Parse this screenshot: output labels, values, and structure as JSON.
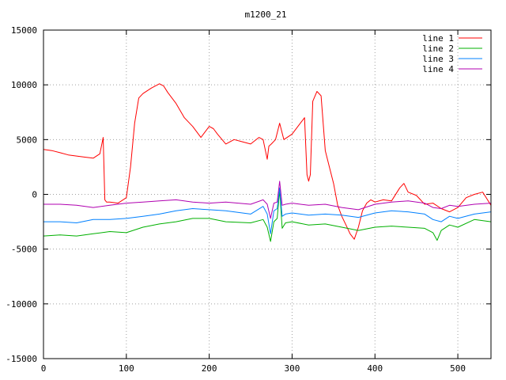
{
  "chart_data": {
    "type": "line",
    "title": "m1200_21",
    "xlabel": "",
    "ylabel": "",
    "xlim": [
      0,
      540
    ],
    "ylim": [
      -15000,
      15000
    ],
    "xticks": [
      0,
      100,
      200,
      300,
      400,
      500
    ],
    "yticks": [
      -15000,
      -10000,
      -5000,
      0,
      5000,
      10000,
      15000
    ],
    "grid": true,
    "legend_position": "top-right",
    "series": [
      {
        "name": "line 1",
        "color": "#ff0000",
        "x": [
          0,
          10,
          20,
          30,
          40,
          50,
          60,
          68,
          72,
          74,
          76,
          80,
          90,
          100,
          105,
          110,
          115,
          120,
          130,
          140,
          145,
          150,
          160,
          170,
          180,
          190,
          200,
          205,
          210,
          220,
          230,
          240,
          250,
          260,
          265,
          270,
          272,
          275,
          280,
          285,
          290,
          300,
          310,
          315,
          318,
          320,
          322,
          325,
          330,
          335,
          340,
          345,
          350,
          355,
          360,
          365,
          370,
          375,
          380,
          385,
          390,
          395,
          400,
          410,
          420,
          430,
          435,
          440,
          450,
          460,
          470,
          480,
          490,
          500,
          510,
          520,
          530,
          540
        ],
        "y": [
          4100,
          4000,
          3800,
          3600,
          3500,
          3400,
          3300,
          3700,
          5200,
          -500,
          -700,
          -700,
          -800,
          -300,
          2500,
          6500,
          8800,
          9200,
          9700,
          10100,
          9900,
          9300,
          8300,
          7000,
          6200,
          5200,
          6200,
          6000,
          5500,
          4600,
          5000,
          4800,
          4600,
          5200,
          5000,
          3200,
          4400,
          4600,
          5000,
          6500,
          5000,
          5500,
          6500,
          7000,
          1800,
          1200,
          1800,
          8500,
          9400,
          9000,
          4000,
          2500,
          1000,
          -1000,
          -2000,
          -2800,
          -3600,
          -4100,
          -3000,
          -1500,
          -800,
          -500,
          -700,
          -500,
          -600,
          600,
          1000,
          200,
          -100,
          -900,
          -800,
          -1300,
          -1600,
          -1200,
          -300,
          0,
          200,
          -1000
        ]
      },
      {
        "name": "line 2",
        "color": "#00b000",
        "x": [
          0,
          20,
          40,
          60,
          80,
          100,
          120,
          140,
          160,
          180,
          200,
          220,
          250,
          265,
          270,
          274,
          278,
          282,
          285,
          288,
          292,
          300,
          320,
          340,
          360,
          380,
          400,
          420,
          440,
          460,
          470,
          475,
          480,
          490,
          500,
          520,
          540
        ],
        "y": [
          -3800,
          -3700,
          -3800,
          -3600,
          -3400,
          -3500,
          -3000,
          -2700,
          -2500,
          -2200,
          -2200,
          -2500,
          -2600,
          -2300,
          -3000,
          -4300,
          -2500,
          -2200,
          400,
          -3100,
          -2600,
          -2500,
          -2800,
          -2700,
          -3000,
          -3300,
          -3000,
          -2900,
          -3000,
          -3100,
          -3500,
          -4200,
          -3300,
          -2800,
          -3000,
          -2300,
          -2500
        ]
      },
      {
        "name": "line 3",
        "color": "#0080ff",
        "x": [
          0,
          20,
          40,
          60,
          80,
          100,
          120,
          140,
          160,
          180,
          200,
          220,
          250,
          265,
          270,
          274,
          278,
          282,
          285,
          288,
          292,
          300,
          320,
          340,
          360,
          380,
          400,
          420,
          440,
          460,
          470,
          480,
          490,
          500,
          520,
          540
        ],
        "y": [
          -2500,
          -2500,
          -2600,
          -2300,
          -2300,
          -2200,
          -2000,
          -1800,
          -1500,
          -1300,
          -1400,
          -1500,
          -1800,
          -1100,
          -1800,
          -3600,
          -1500,
          -1300,
          600,
          -2000,
          -1800,
          -1700,
          -1900,
          -1800,
          -1900,
          -2100,
          -1700,
          -1500,
          -1600,
          -1800,
          -2300,
          -2500,
          -2000,
          -2200,
          -1800,
          -1600
        ]
      },
      {
        "name": "line 4",
        "color": "#b000b0",
        "x": [
          0,
          20,
          40,
          60,
          80,
          100,
          120,
          140,
          160,
          180,
          200,
          220,
          250,
          265,
          270,
          274,
          278,
          282,
          285,
          288,
          292,
          300,
          320,
          340,
          360,
          380,
          400,
          420,
          440,
          460,
          470,
          480,
          490,
          500,
          520,
          540
        ],
        "y": [
          -900,
          -900,
          -1000,
          -1200,
          -1000,
          -800,
          -700,
          -600,
          -500,
          -700,
          -800,
          -700,
          -900,
          -500,
          -900,
          -2200,
          -800,
          -700,
          1200,
          -1000,
          -900,
          -800,
          -1000,
          -900,
          -1200,
          -1400,
          -900,
          -700,
          -600,
          -800,
          -1200,
          -1300,
          -1000,
          -1100,
          -900,
          -800
        ]
      }
    ]
  }
}
